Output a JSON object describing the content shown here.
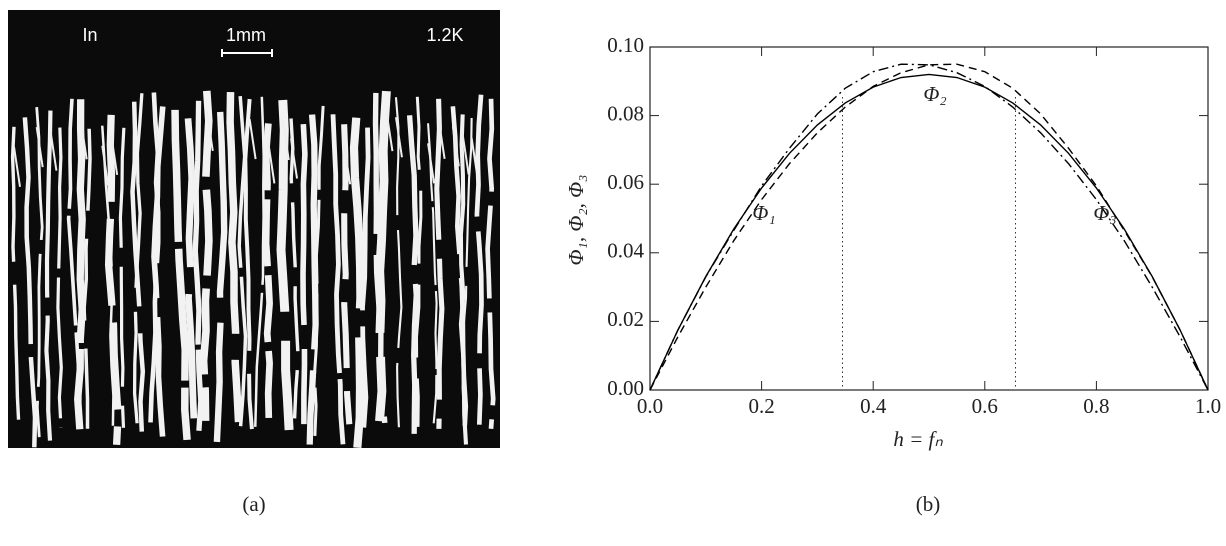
{
  "figure_a": {
    "labels": [
      "In",
      "1mm",
      "1.2K"
    ],
    "caption": "(a)"
  },
  "chart_data": {
    "type": "line",
    "caption": "(b)",
    "x_label": "h = fₙ",
    "y_label": "Φ₁, Φ₂, Φ₃",
    "annotations": [
      "Φ₁",
      "Φ₂",
      "Φ₃"
    ],
    "x": [
      0,
      0.05,
      0.1,
      0.15,
      0.2,
      0.25,
      0.3,
      0.35,
      0.4,
      0.45,
      0.5,
      0.55,
      0.6,
      0.65,
      0.7,
      0.75,
      0.8,
      0.85,
      0.9,
      0.95,
      1
    ],
    "series": [
      {
        "color": "#000000",
        "dash": "solid",
        "values": [
          0,
          0.0175,
          0.0331,
          0.0469,
          0.0589,
          0.069,
          0.0773,
          0.0837,
          0.0883,
          0.0911,
          0.092,
          0.0911,
          0.0883,
          0.0837,
          0.0773,
          0.069,
          0.0589,
          0.0469,
          0.0331,
          0.0175,
          0
        ]
      },
      {
        "color": "#000000",
        "dash": "dashed",
        "values": [
          0,
          0.0155,
          0.03,
          0.0435,
          0.0555,
          0.066,
          0.075,
          0.0825,
          0.0885,
          0.0925,
          0.0948,
          0.095,
          0.0928,
          0.088,
          0.0805,
          0.0705,
          0.0595,
          0.0465,
          0.033,
          0.0175,
          0
        ]
      },
      {
        "color": "#000000",
        "dash": "dashdot",
        "values": [
          0,
          0.0175,
          0.033,
          0.0465,
          0.0595,
          0.0705,
          0.0805,
          0.088,
          0.0928,
          0.095,
          0.0948,
          0.0925,
          0.0885,
          0.0825,
          0.075,
          0.066,
          0.0555,
          0.0435,
          0.03,
          0.0155,
          0
        ]
      }
    ],
    "vlines": [
      0.345,
      0.655
    ],
    "xlim": [
      0,
      1
    ],
    "ylim": [
      0,
      0.1
    ],
    "xticks": [
      {
        "value": 0,
        "label": "0.0"
      },
      0.2,
      0.4,
      0.6,
      0.8,
      {
        "value": 1,
        "label": "1.0"
      }
    ],
    "yticks": [
      {
        "value": 0,
        "label": "0.00"
      },
      0.02,
      0.04,
      0.06,
      0.08,
      {
        "value": 0.1,
        "label": "0.10"
      }
    ]
  }
}
